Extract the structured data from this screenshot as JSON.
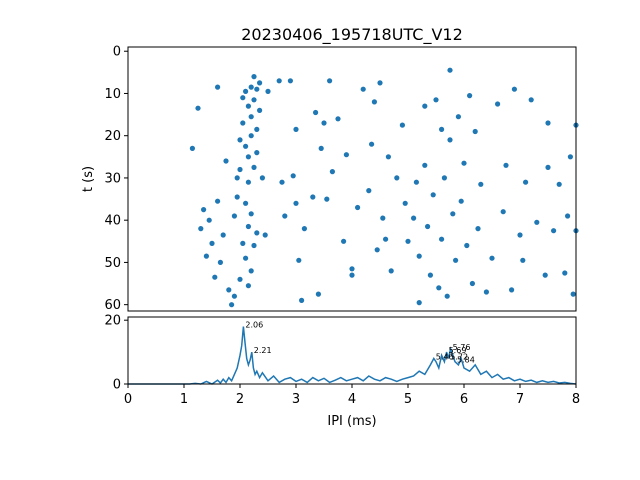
{
  "chart_data": [
    {
      "type": "scatter",
      "title": "20230406_195718UTC_V12",
      "ylabel": "t (s)",
      "xlim": [
        0,
        8
      ],
      "ylim": [
        61.5,
        -1
      ],
      "y_inverted": true,
      "yticks": [
        "0",
        "10",
        "20",
        "30",
        "40",
        "50",
        "60"
      ],
      "color": "#1f77b4",
      "points": [
        [
          1.15,
          23.0
        ],
        [
          1.25,
          13.5
        ],
        [
          1.3,
          42.0
        ],
        [
          1.35,
          37.5
        ],
        [
          1.4,
          48.5
        ],
        [
          1.45,
          40.0
        ],
        [
          1.5,
          45.5
        ],
        [
          1.55,
          53.5
        ],
        [
          1.6,
          35.5
        ],
        [
          1.6,
          8.5
        ],
        [
          1.65,
          50.0
        ],
        [
          1.7,
          43.5
        ],
        [
          1.75,
          26.0
        ],
        [
          1.8,
          56.5
        ],
        [
          1.85,
          60.0
        ],
        [
          1.9,
          58.0
        ],
        [
          1.9,
          39.0
        ],
        [
          1.95,
          30.0
        ],
        [
          1.95,
          34.5
        ],
        [
          2.0,
          21.0
        ],
        [
          2.0,
          28.0
        ],
        [
          2.0,
          54.0
        ],
        [
          2.05,
          11.0
        ],
        [
          2.05,
          17.0
        ],
        [
          2.05,
          45.5
        ],
        [
          2.1,
          9.5
        ],
        [
          2.1,
          22.5
        ],
        [
          2.1,
          36.0
        ],
        [
          2.1,
          49.0
        ],
        [
          2.15,
          13.0
        ],
        [
          2.15,
          25.0
        ],
        [
          2.15,
          31.0
        ],
        [
          2.15,
          41.5
        ],
        [
          2.15,
          55.5
        ],
        [
          2.2,
          8.5
        ],
        [
          2.2,
          15.5
        ],
        [
          2.2,
          20.0
        ],
        [
          2.2,
          38.5
        ],
        [
          2.2,
          52.0
        ],
        [
          2.25,
          6.0
        ],
        [
          2.25,
          11.5
        ],
        [
          2.25,
          27.5
        ],
        [
          2.25,
          46.0
        ],
        [
          2.3,
          9.0
        ],
        [
          2.3,
          18.5
        ],
        [
          2.3,
          24.0
        ],
        [
          2.3,
          43.0
        ],
        [
          2.35,
          7.5
        ],
        [
          2.35,
          14.0
        ],
        [
          2.4,
          30.0
        ],
        [
          2.45,
          43.5
        ],
        [
          2.5,
          9.5
        ],
        [
          2.7,
          7.0
        ],
        [
          2.75,
          31.0
        ],
        [
          2.8,
          39.0
        ],
        [
          2.9,
          7.0
        ],
        [
          2.95,
          29.5
        ],
        [
          3.0,
          18.5
        ],
        [
          3.0,
          36.0
        ],
        [
          3.05,
          49.5
        ],
        [
          3.1,
          59.0
        ],
        [
          3.15,
          42.0
        ],
        [
          3.3,
          34.5
        ],
        [
          3.35,
          14.5
        ],
        [
          3.4,
          57.5
        ],
        [
          3.45,
          23.0
        ],
        [
          3.5,
          17.0
        ],
        [
          3.55,
          35.0
        ],
        [
          3.6,
          7.0
        ],
        [
          3.65,
          28.5
        ],
        [
          3.75,
          16.0
        ],
        [
          3.85,
          45.0
        ],
        [
          3.9,
          24.5
        ],
        [
          4.0,
          51.5
        ],
        [
          4.0,
          53.0
        ],
        [
          4.1,
          37.0
        ],
        [
          4.2,
          9.0
        ],
        [
          4.3,
          33.0
        ],
        [
          4.35,
          22.0
        ],
        [
          4.4,
          12.0
        ],
        [
          4.45,
          47.0
        ],
        [
          4.5,
          7.5
        ],
        [
          4.55,
          39.5
        ],
        [
          4.6,
          44.5
        ],
        [
          4.65,
          25.0
        ],
        [
          4.7,
          52.0
        ],
        [
          4.8,
          30.0
        ],
        [
          4.9,
          17.5
        ],
        [
          4.95,
          36.0
        ],
        [
          5.0,
          45.0
        ],
        [
          5.1,
          39.5
        ],
        [
          5.15,
          31.0
        ],
        [
          5.2,
          48.5
        ],
        [
          5.2,
          59.5
        ],
        [
          5.3,
          13.0
        ],
        [
          5.3,
          27.0
        ],
        [
          5.35,
          41.5
        ],
        [
          5.4,
          53.0
        ],
        [
          5.45,
          34.0
        ],
        [
          5.5,
          11.5
        ],
        [
          5.55,
          56.0
        ],
        [
          5.6,
          18.5
        ],
        [
          5.6,
          44.5
        ],
        [
          5.65,
          30.0
        ],
        [
          5.7,
          58.0
        ],
        [
          5.75,
          4.5
        ],
        [
          5.75,
          21.0
        ],
        [
          5.8,
          38.5
        ],
        [
          5.85,
          49.5
        ],
        [
          5.9,
          15.5
        ],
        [
          5.95,
          35.5
        ],
        [
          6.0,
          26.5
        ],
        [
          6.05,
          46.0
        ],
        [
          6.1,
          10.5
        ],
        [
          6.15,
          55.0
        ],
        [
          6.2,
          19.0
        ],
        [
          6.25,
          42.0
        ],
        [
          6.3,
          31.5
        ],
        [
          6.4,
          57.0
        ],
        [
          6.5,
          49.0
        ],
        [
          6.6,
          12.5
        ],
        [
          6.7,
          38.0
        ],
        [
          6.75,
          27.0
        ],
        [
          6.85,
          56.5
        ],
        [
          6.9,
          9.0
        ],
        [
          7.0,
          43.5
        ],
        [
          7.05,
          49.5
        ],
        [
          7.1,
          31.0
        ],
        [
          7.2,
          11.5
        ],
        [
          7.3,
          40.5
        ],
        [
          7.45,
          53.0
        ],
        [
          7.5,
          27.5
        ],
        [
          7.5,
          17.0
        ],
        [
          7.6,
          42.5
        ],
        [
          7.7,
          31.5
        ],
        [
          7.8,
          52.5
        ],
        [
          7.85,
          39.0
        ],
        [
          7.9,
          25.0
        ],
        [
          7.95,
          57.5
        ],
        [
          8.0,
          17.5
        ],
        [
          8.0,
          42.5
        ]
      ]
    },
    {
      "type": "line",
      "xlabel": "IPI (ms)",
      "xlim": [
        0,
        8
      ],
      "ylim": [
        0,
        21
      ],
      "xticks": [
        "0",
        "1",
        "2",
        "3",
        "4",
        "5",
        "6",
        "7",
        "8"
      ],
      "yticks": [
        "0",
        "20"
      ],
      "color": "#1f77b4",
      "x": [
        0,
        0.5,
        1.0,
        1.1,
        1.2,
        1.3,
        1.4,
        1.5,
        1.6,
        1.65,
        1.7,
        1.75,
        1.8,
        1.85,
        1.9,
        1.95,
        2.0,
        2.03,
        2.06,
        2.09,
        2.12,
        2.15,
        2.18,
        2.21,
        2.24,
        2.27,
        2.3,
        2.35,
        2.4,
        2.5,
        2.6,
        2.7,
        2.8,
        2.9,
        3.0,
        3.1,
        3.2,
        3.3,
        3.4,
        3.5,
        3.6,
        3.7,
        3.8,
        3.9,
        4.0,
        4.1,
        4.2,
        4.3,
        4.4,
        4.5,
        4.6,
        4.7,
        4.8,
        4.9,
        5.0,
        5.1,
        5.2,
        5.3,
        5.4,
        5.46,
        5.5,
        5.55,
        5.6,
        5.65,
        5.69,
        5.72,
        5.76,
        5.8,
        5.84,
        5.9,
        5.95,
        6.0,
        6.1,
        6.2,
        6.3,
        6.4,
        6.5,
        6.6,
        6.7,
        6.8,
        6.9,
        7.0,
        7.1,
        7.2,
        7.3,
        7.4,
        7.5,
        7.6,
        7.7,
        7.8,
        7.9,
        8.0
      ],
      "y": [
        0,
        0,
        0,
        0,
        0.2,
        0,
        0.8,
        0,
        1.2,
        0.3,
        1.5,
        0.5,
        2.0,
        1.0,
        3.0,
        5.0,
        9.0,
        12.0,
        18.0,
        13.0,
        8.0,
        6.0,
        7.5,
        10.0,
        5.0,
        3.0,
        4.0,
        2.0,
        3.5,
        1.0,
        2.5,
        0.5,
        1.5,
        2.0,
        0.8,
        1.5,
        0.5,
        2.0,
        1.0,
        1.8,
        0.5,
        1.2,
        2.0,
        1.0,
        1.5,
        2.0,
        1.0,
        2.5,
        1.5,
        1.0,
        2.0,
        1.5,
        0.8,
        1.5,
        2.0,
        2.5,
        4.0,
        3.0,
        6.0,
        8.0,
        7.0,
        5.0,
        9.0,
        7.0,
        10.0,
        8.0,
        11.0,
        9.0,
        7.0,
        6.0,
        8.0,
        5.0,
        4.0,
        6.0,
        3.0,
        4.0,
        2.0,
        3.0,
        1.5,
        2.0,
        1.0,
        1.5,
        0.8,
        1.2,
        0.5,
        1.0,
        0.5,
        0.8,
        0.3,
        0.5,
        0.2,
        0
      ],
      "annotations": [
        {
          "x": 2.06,
          "y": 18.0,
          "label": "2.06"
        },
        {
          "x": 2.21,
          "y": 10.0,
          "label": "2.21"
        },
        {
          "x": 5.46,
          "y": 8.0,
          "label": "5.46"
        },
        {
          "x": 5.69,
          "y": 10.0,
          "label": "5.69"
        },
        {
          "x": 5.72,
          "y": 8.0,
          "label": "5.72"
        },
        {
          "x": 5.76,
          "y": 11.0,
          "label": "5.76"
        },
        {
          "x": 5.84,
          "y": 7.0,
          "label": "5.84"
        }
      ]
    }
  ]
}
